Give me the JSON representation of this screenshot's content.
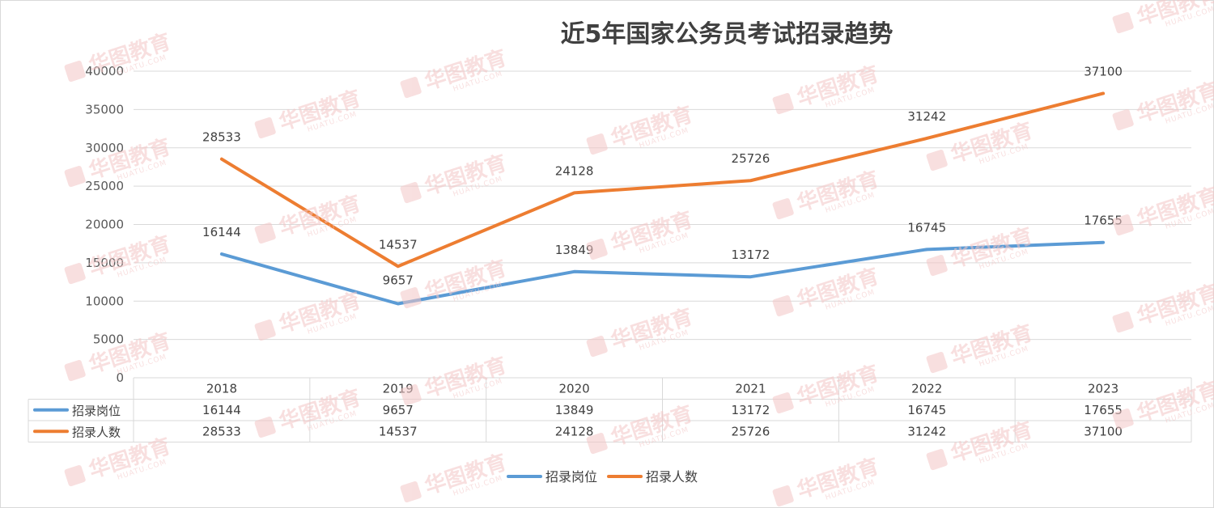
{
  "chart_data": {
    "type": "line",
    "title": "近5年国家公务员考试招录趋势",
    "categories": [
      "2018",
      "2019",
      "2020",
      "2021",
      "2022",
      "2023"
    ],
    "series": [
      {
        "name": "招录岗位",
        "values": [
          16144,
          9657,
          13849,
          13172,
          16745,
          17655
        ],
        "color": "#5b9bd5"
      },
      {
        "name": "招录人数",
        "values": [
          28533,
          14537,
          24128,
          25726,
          31242,
          37100
        ],
        "color": "#ed7d31"
      }
    ],
    "ylim": [
      0,
      40000
    ],
    "yticks": [
      0,
      5000,
      10000,
      15000,
      20000,
      25000,
      30000,
      35000,
      40000
    ],
    "grid": true,
    "legend": "bottom",
    "data_table": true
  },
  "watermark": {
    "text": "华图教育",
    "sub": "HUATU.COM",
    "color": "#f3c6c6"
  }
}
